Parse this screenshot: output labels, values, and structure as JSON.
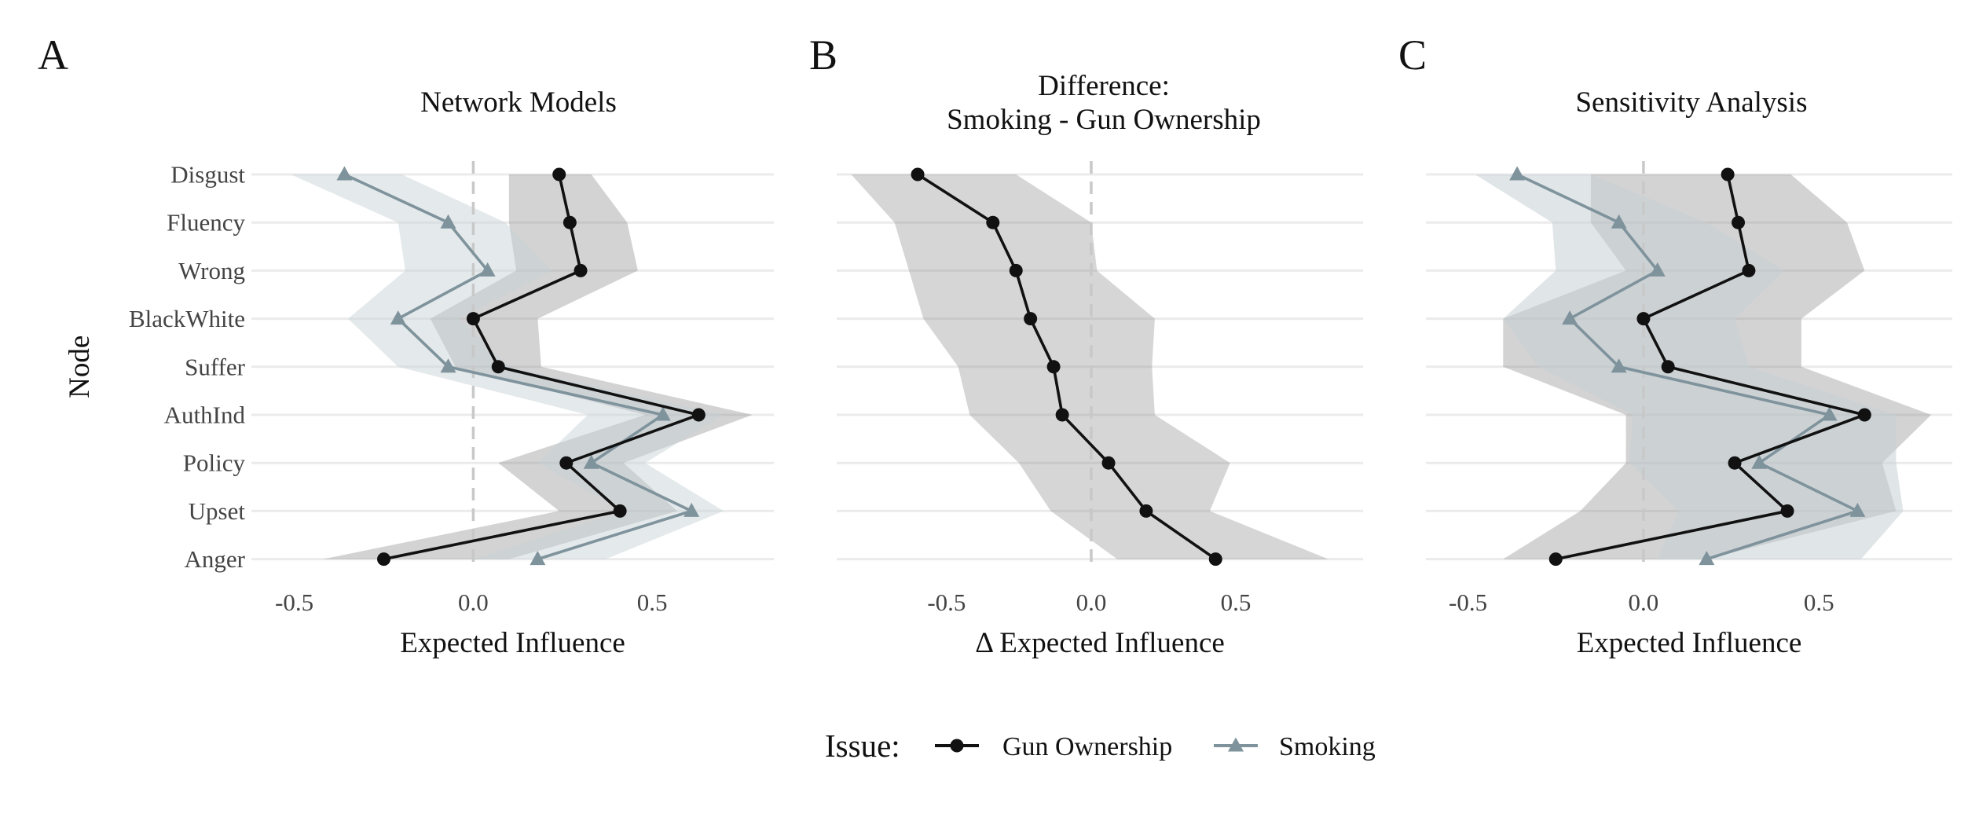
{
  "panels": [
    {
      "letter": "A",
      "title": [
        "Network Models"
      ],
      "xlabel": "Expected Influence",
      "ylabel": "Node",
      "show_y_ticks": true
    },
    {
      "letter": "B",
      "title": [
        "Difference:",
        "Smoking - Gun Ownership"
      ],
      "xlabel": "Δ Expected Influence",
      "ylabel": "",
      "show_y_ticks": false
    },
    {
      "letter": "C",
      "title": [
        "Sensitivity Analysis"
      ],
      "xlabel": "Expected Influence",
      "ylabel": "",
      "show_y_ticks": false
    }
  ],
  "legend": {
    "title": "Issue:",
    "entries": [
      {
        "label": "Gun Ownership",
        "color": "#111111",
        "marker": "circle"
      },
      {
        "label": "Smoking",
        "color": "#7f939c",
        "marker": "triangle"
      }
    ]
  },
  "colors": {
    "gun_line": "#111111",
    "smoking_line": "#7f939c",
    "gun_band": "#8c8c8c",
    "smoking_band": "#c6d0d6",
    "diff_band": "#8c8c8c",
    "gridline": "#ebebeb",
    "zero_line": "#c8c8c8"
  },
  "chart_data": [
    {
      "type": "line",
      "panel": "A",
      "title": "Network Models",
      "xlabel": "Expected Influence",
      "ylabel": "Node",
      "categories": [
        "Disgust",
        "Fluency",
        "Wrong",
        "BlackWhite",
        "Suffer",
        "AuthInd",
        "Policy",
        "Upset",
        "Anger"
      ],
      "xlim": [
        -0.62,
        0.84
      ],
      "xticks": [
        -0.5,
        0.0,
        0.5
      ],
      "xtick_labels": [
        "-0.5",
        "0.0",
        "0.5"
      ],
      "vline": 0,
      "grid": true,
      "series": [
        {
          "name": "Gun Ownership",
          "values": [
            0.24,
            0.27,
            0.3,
            0.0,
            0.07,
            0.63,
            0.26,
            0.41,
            -0.25
          ],
          "lower": [
            0.1,
            0.1,
            0.12,
            -0.12,
            -0.05,
            0.48,
            0.07,
            0.24,
            -0.42
          ],
          "upper": [
            0.33,
            0.43,
            0.46,
            0.18,
            0.19,
            0.78,
            0.42,
            0.57,
            0.1
          ]
        },
        {
          "name": "Smoking",
          "values": [
            -0.36,
            -0.07,
            0.04,
            -0.21,
            -0.07,
            0.53,
            0.33,
            0.61,
            0.18
          ],
          "lower": [
            -0.51,
            -0.21,
            -0.19,
            -0.35,
            -0.21,
            0.32,
            0.18,
            0.42,
            0.0
          ],
          "upper": [
            -0.2,
            0.09,
            0.22,
            -0.04,
            0.1,
            0.7,
            0.48,
            0.7,
            0.37
          ]
        }
      ]
    },
    {
      "type": "line",
      "panel": "B",
      "title": "Difference: Smoking - Gun Ownership",
      "xlabel": "Δ Expected Influence",
      "ylabel": "",
      "categories": [
        "Disgust",
        "Fluency",
        "Wrong",
        "BlackWhite",
        "Suffer",
        "AuthInd",
        "Policy",
        "Upset",
        "Anger"
      ],
      "xlim": [
        -0.88,
        0.94
      ],
      "xticks": [
        -0.5,
        0.0,
        0.5
      ],
      "xtick_labels": [
        "-0.5",
        "0.0",
        "0.5"
      ],
      "vline": 0,
      "grid": true,
      "series": [
        {
          "name": "Gun Ownership",
          "values": [
            -0.6,
            -0.34,
            -0.26,
            -0.21,
            -0.13,
            -0.1,
            0.06,
            0.19,
            0.43
          ],
          "lower": [
            -0.83,
            -0.68,
            -0.63,
            -0.58,
            -0.46,
            -0.42,
            -0.25,
            -0.14,
            0.09
          ],
          "upper": [
            -0.26,
            0.0,
            0.02,
            0.22,
            0.21,
            0.22,
            0.48,
            0.41,
            0.82
          ]
        }
      ]
    },
    {
      "type": "line",
      "panel": "C",
      "title": "Sensitivity Analysis",
      "xlabel": "Expected Influence",
      "ylabel": "",
      "categories": [
        "Disgust",
        "Fluency",
        "Wrong",
        "BlackWhite",
        "Suffer",
        "AuthInd",
        "Policy",
        "Upset",
        "Anger"
      ],
      "xlim": [
        -0.62,
        0.88
      ],
      "xticks": [
        -0.5,
        0.0,
        0.5
      ],
      "xtick_labels": [
        "-0.5",
        "0.0",
        "0.5"
      ],
      "vline": 0,
      "grid": true,
      "series": [
        {
          "name": "Gun Ownership",
          "values": [
            0.24,
            0.27,
            0.3,
            0.0,
            0.07,
            0.63,
            0.26,
            0.41,
            -0.25
          ],
          "lower": [
            -0.15,
            -0.15,
            -0.05,
            -0.4,
            -0.4,
            -0.05,
            -0.05,
            -0.18,
            -0.4
          ],
          "upper": [
            0.42,
            0.58,
            0.63,
            0.45,
            0.45,
            0.82,
            0.68,
            0.72,
            0.18
          ]
        },
        {
          "name": "Smoking",
          "values": [
            -0.36,
            -0.07,
            0.04,
            -0.21,
            -0.07,
            0.53,
            0.33,
            0.61,
            0.18
          ],
          "lower": [
            -0.48,
            -0.26,
            -0.25,
            -0.4,
            -0.3,
            -0.03,
            -0.04,
            0.1,
            0.04
          ],
          "upper": [
            -0.15,
            0.18,
            0.4,
            0.26,
            0.3,
            0.72,
            0.72,
            0.74,
            0.62
          ]
        }
      ]
    }
  ]
}
